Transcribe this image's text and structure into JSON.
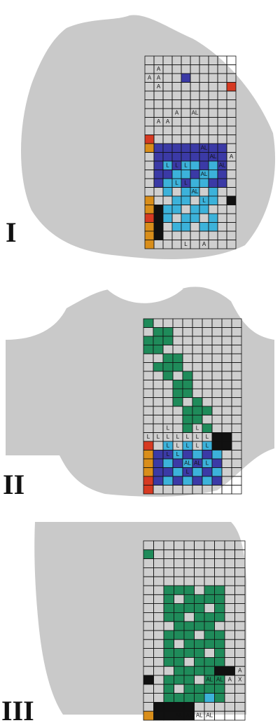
{
  "panels": [
    {
      "label": "I",
      "cell_labels": [
        "A",
        "A",
        "A",
        "A",
        "A",
        "AL",
        "A",
        "A",
        "AL",
        "AL",
        "AL",
        "L",
        "L",
        "L",
        "AL",
        "A",
        "L",
        "L",
        "AL",
        "L",
        "L",
        "A"
      ]
    },
    {
      "label": "II",
      "cell_labels": [
        "L",
        "L",
        "L",
        "L",
        "L",
        "L",
        "L",
        "L",
        "L",
        "L",
        "L",
        "L",
        "L",
        "L",
        "L",
        "L",
        "AL",
        "AL",
        "L",
        "L"
      ]
    },
    {
      "label": "III",
      "cell_labels": [
        "A",
        "AL",
        "AL",
        "A",
        "X",
        "AL",
        "AL",
        "AL",
        "AL"
      ]
    }
  ]
}
